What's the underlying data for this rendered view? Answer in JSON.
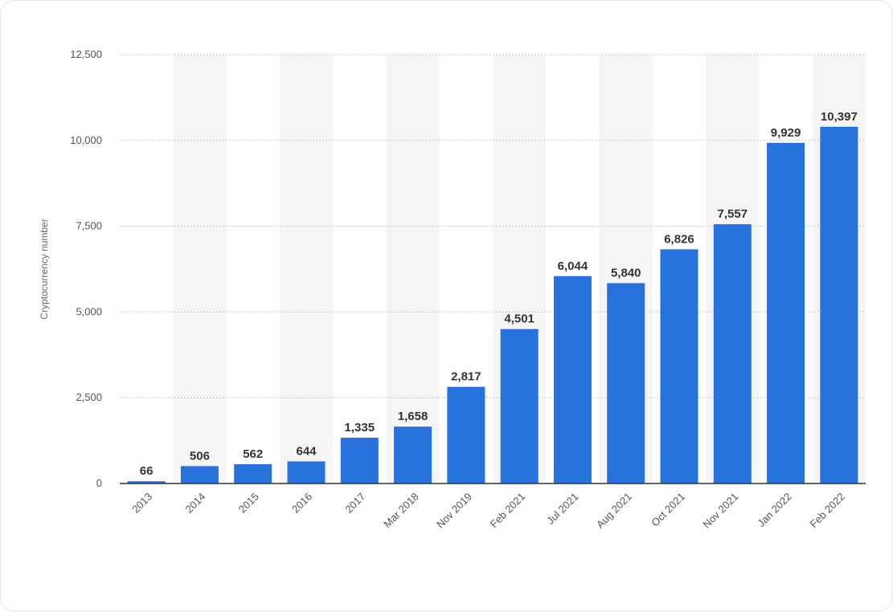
{
  "chart_data": {
    "type": "bar",
    "categories": [
      "2013",
      "2014",
      "2015",
      "2016",
      "2017",
      "Mar 2018",
      "Nov 2019",
      "Feb 2021",
      "Jul 2021",
      "Aug 2021",
      "Oct 2021",
      "Nov 2021",
      "Jan 2022",
      "Feb 2022"
    ],
    "values": [
      66,
      506,
      562,
      644,
      1335,
      1658,
      2817,
      4501,
      6044,
      5840,
      6826,
      7557,
      9929,
      10397
    ],
    "value_labels": [
      "66",
      "506",
      "562",
      "644",
      "1,335",
      "1,658",
      "2,817",
      "4,501",
      "6,044",
      "5,840",
      "6,826",
      "7,557",
      "9,929",
      "10,397"
    ],
    "title": "",
    "xlabel": "",
    "ylabel": "Cryptocurrency number",
    "ylim": [
      0,
      12500
    ],
    "yticks": [
      0,
      2500,
      5000,
      7500,
      10000,
      12500
    ],
    "ytick_labels": [
      "0",
      "2,500",
      "5,000",
      "7,500",
      "10,000",
      "12,500"
    ],
    "grid": true,
    "bar_color": "#2872de",
    "stripe_color": "#f5f5f5",
    "gridline_color": "#c8c8c8",
    "axis_color": "#333333"
  }
}
